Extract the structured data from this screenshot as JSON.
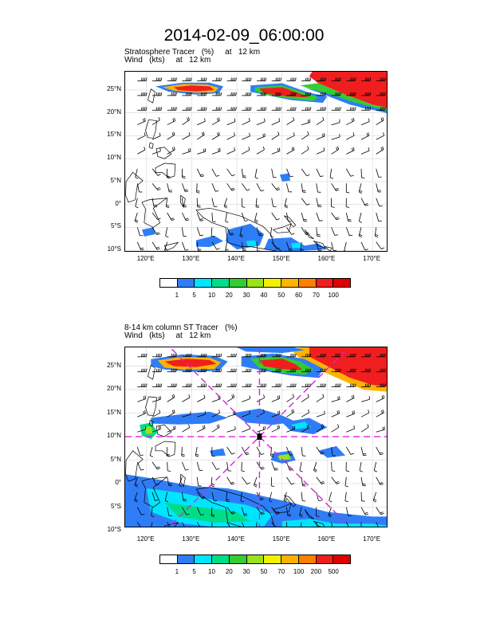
{
  "title": "2014-02-09_06:00:00",
  "panel1": {
    "title_line1": "Stratosphere Tracer   (%)     at   12 km",
    "title_line2": "Wind   (kts)     at   12 km",
    "lat_labels": [
      "25°N",
      "20°N",
      "15°N",
      "10°N",
      "5°N",
      "0°",
      "5°S",
      "10°S"
    ],
    "lon_labels": [
      "120°E",
      "130°E",
      "140°E",
      "150°E",
      "160°E",
      "170°E"
    ],
    "colorbar_labels": [
      "1",
      "5",
      "10",
      "20",
      "30",
      "40",
      "50",
      "60",
      "70",
      "100"
    ],
    "colorbar_colors": [
      "#ffffff",
      "#2f7df6",
      "#00e5ff",
      "#00dd88",
      "#33cc33",
      "#99e31a",
      "#f2f200",
      "#ffb300",
      "#ff7f00",
      "#f01e1e",
      "#e00000"
    ]
  },
  "panel2": {
    "title_line1": "8-14 km column ST Tracer   (%)",
    "title_line2": "Wind   (kts)     at   12 km",
    "lat_labels": [
      "25°N",
      "20°N",
      "15°N",
      "10°N",
      "5°N",
      "0°",
      "5°S",
      "10°S"
    ],
    "lon_labels": [
      "120°E",
      "130°E",
      "140°E",
      "150°E",
      "160°E",
      "170°E"
    ],
    "colorbar_labels": [
      "1",
      "5",
      "10",
      "20",
      "30",
      "50",
      "70",
      "100",
      "200",
      "500"
    ],
    "colorbar_colors": [
      "#ffffff",
      "#2f7df6",
      "#00e5ff",
      "#00dd88",
      "#33cc33",
      "#99e31a",
      "#f2f200",
      "#ffb300",
      "#ff7f00",
      "#f01e1e",
      "#e00000"
    ],
    "cross_line_color": "#e020e0"
  }
}
